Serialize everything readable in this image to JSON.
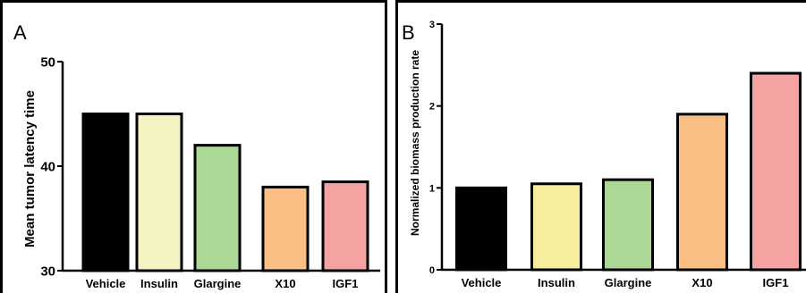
{
  "chart_data": [
    {
      "panel": "A",
      "type": "bar",
      "title": "",
      "xlabel": "",
      "ylabel": "Mean tumor latency time",
      "ylim": [
        30,
        50
      ],
      "yticks": [
        30,
        40,
        50
      ],
      "categories": [
        "Vehicle",
        "Insulin",
        "Glargine",
        "X10",
        "IGF1"
      ],
      "values": [
        45,
        45,
        42,
        38,
        38.5
      ],
      "colors": [
        "#000000",
        "#f6f3c2",
        "#acd896",
        "#fbbf84",
        "#f5a2a3"
      ],
      "grid": false,
      "legend": "none"
    },
    {
      "panel": "B",
      "type": "bar",
      "title": "",
      "xlabel": "",
      "ylabel": "Normalized biomass production rate",
      "ylim": [
        0,
        3
      ],
      "yticks": [
        0,
        1,
        2,
        3
      ],
      "categories": [
        "Vehicle",
        "Insulin",
        "Glargine",
        "X10",
        "IGF1"
      ],
      "values": [
        1.0,
        1.05,
        1.1,
        1.9,
        2.4
      ],
      "colors": [
        "#000000",
        "#f7ef9e",
        "#acd896",
        "#fbbf84",
        "#f5a2a3"
      ],
      "grid": false,
      "legend": "none"
    }
  ]
}
